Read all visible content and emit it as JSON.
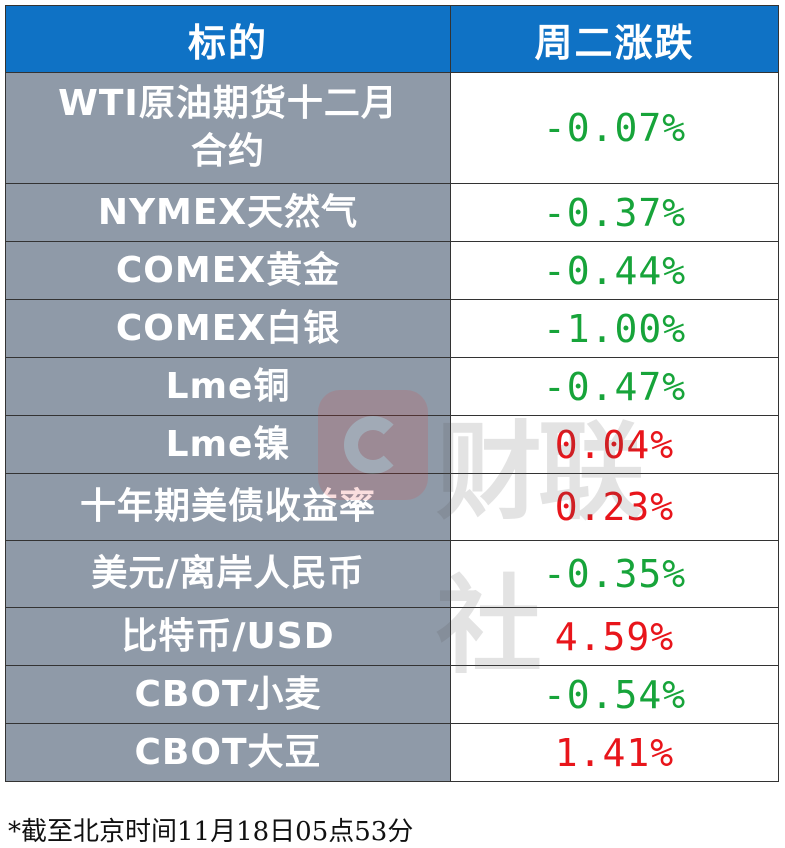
{
  "header": {
    "col_instrument": "标的",
    "col_change": "周二涨跌"
  },
  "rows": [
    {
      "name_line1": "WTI原油期货十二月",
      "name_line2": "合约",
      "change": "-0.07%",
      "direction": "down"
    },
    {
      "name": "NYMEX天然气",
      "change": "-0.37%",
      "direction": "down"
    },
    {
      "name": "COMEX黄金",
      "change": "-0.44%",
      "direction": "down"
    },
    {
      "name": "COMEX白银",
      "change": "-1.00%",
      "direction": "down"
    },
    {
      "name": "Lme铜",
      "change": "-0.47%",
      "direction": "down"
    },
    {
      "name": "Lme镍",
      "change": "0.04%",
      "direction": "up"
    },
    {
      "name": "十年期美债收益率",
      "change": "0.23%",
      "direction": "up"
    },
    {
      "name": "美元/离岸人民币",
      "change": "-0.35%",
      "direction": "down"
    },
    {
      "name": "比特币/USD",
      "change": "4.59%",
      "direction": "up"
    },
    {
      "name": "CBOT小麦",
      "change": "-0.54%",
      "direction": "down"
    },
    {
      "name": "CBOT大豆",
      "change": "1.41%",
      "direction": "up"
    }
  ],
  "footnote": "*截至北京时间11月18日05点53分",
  "watermark": {
    "text": "财联社",
    "logo": "cailianshe-logo-icon"
  },
  "colors": {
    "header_bg": "#0f72c5",
    "name_bg": "#8f9aa8",
    "up": "#e8151b",
    "down": "#17a43a"
  }
}
